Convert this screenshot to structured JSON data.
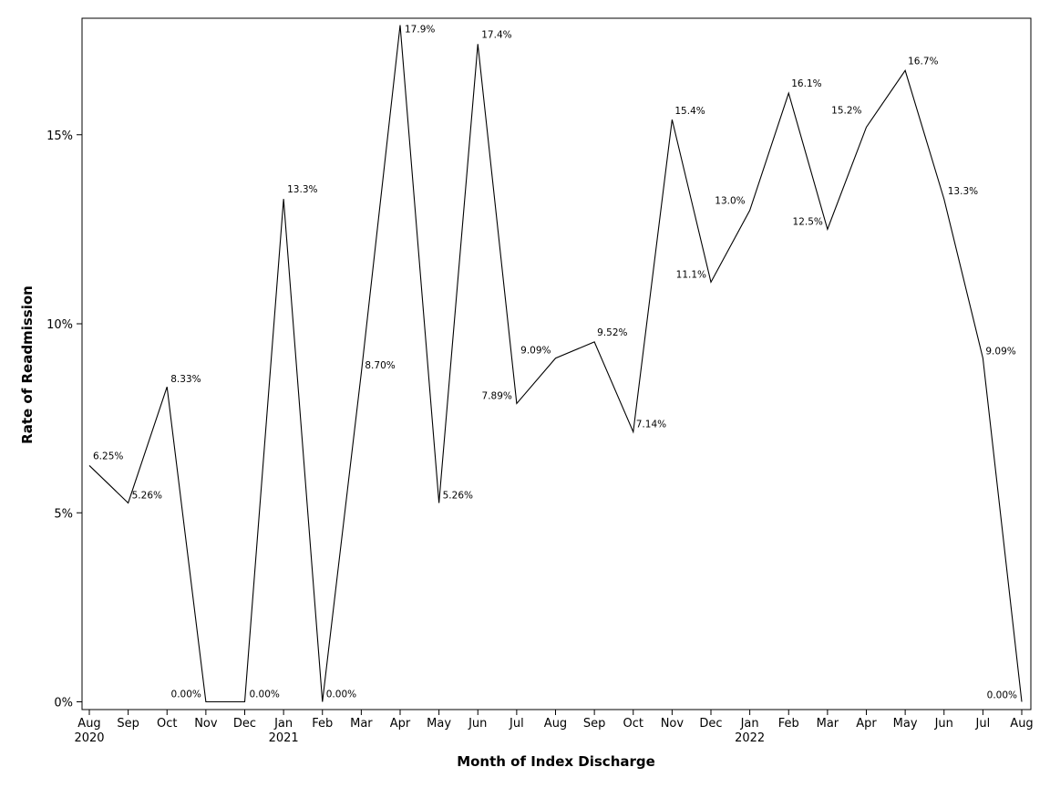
{
  "chart_data": {
    "type": "line",
    "xlabel": "Month of Index Discharge",
    "ylabel": "Rate of Readmission",
    "ylim": [
      0,
      18
    ],
    "y_ticks": [
      {
        "value": 0,
        "label": "0%"
      },
      {
        "value": 5,
        "label": "5%"
      },
      {
        "value": 10,
        "label": "10%"
      },
      {
        "value": 15,
        "label": "15%"
      }
    ],
    "grid": false,
    "color": "#000000",
    "points": [
      {
        "month": "Aug",
        "year": "2020",
        "value": 6.25,
        "label": "6.25%"
      },
      {
        "month": "Sep",
        "year": "",
        "value": 5.26,
        "label": "5.26%"
      },
      {
        "month": "Oct",
        "year": "",
        "value": 8.33,
        "label": "8.33%"
      },
      {
        "month": "Nov",
        "year": "",
        "value": 0,
        "label": "0.00%"
      },
      {
        "month": "Dec",
        "year": "",
        "value": 0,
        "label": "0.00%"
      },
      {
        "month": "Jan",
        "year": "2021",
        "value": 13.3,
        "label": "13.3%"
      },
      {
        "month": "Feb",
        "year": "",
        "value": 0,
        "label": "0.00%"
      },
      {
        "month": "Mar",
        "year": "",
        "value": 8.7,
        "label": "8.70%"
      },
      {
        "month": "Apr",
        "year": "",
        "value": 17.9,
        "label": "17.9%"
      },
      {
        "month": "May",
        "year": "",
        "value": 5.26,
        "label": "5.26%"
      },
      {
        "month": "Jun",
        "year": "",
        "value": 17.4,
        "label": "17.4%"
      },
      {
        "month": "Jul",
        "year": "",
        "value": 7.89,
        "label": "7.89%"
      },
      {
        "month": "Aug",
        "year": "",
        "value": 9.09,
        "label": "9.09%"
      },
      {
        "month": "Sep",
        "year": "",
        "value": 9.52,
        "label": "9.52%"
      },
      {
        "month": "Oct",
        "year": "",
        "value": 7.14,
        "label": "7.14%"
      },
      {
        "month": "Nov",
        "year": "",
        "value": 15.4,
        "label": "15.4%"
      },
      {
        "month": "Dec",
        "year": "",
        "value": 11.1,
        "label": "11.1%"
      },
      {
        "month": "Jan",
        "year": "2022",
        "value": 13.0,
        "label": "13.0%"
      },
      {
        "month": "Feb",
        "year": "",
        "value": 16.1,
        "label": "16.1%"
      },
      {
        "month": "Mar",
        "year": "",
        "value": 12.5,
        "label": "12.5%"
      },
      {
        "month": "Apr",
        "year": "",
        "value": 15.2,
        "label": "15.2%"
      },
      {
        "month": "May",
        "year": "",
        "value": 16.7,
        "label": "16.7%"
      },
      {
        "month": "Jun",
        "year": "",
        "value": 13.3,
        "label": "13.3%"
      },
      {
        "month": "Jul",
        "year": "",
        "value": 9.09,
        "label": "9.09%"
      },
      {
        "month": "Aug",
        "year": "",
        "value": 0,
        "label": "0.00%"
      }
    ]
  }
}
